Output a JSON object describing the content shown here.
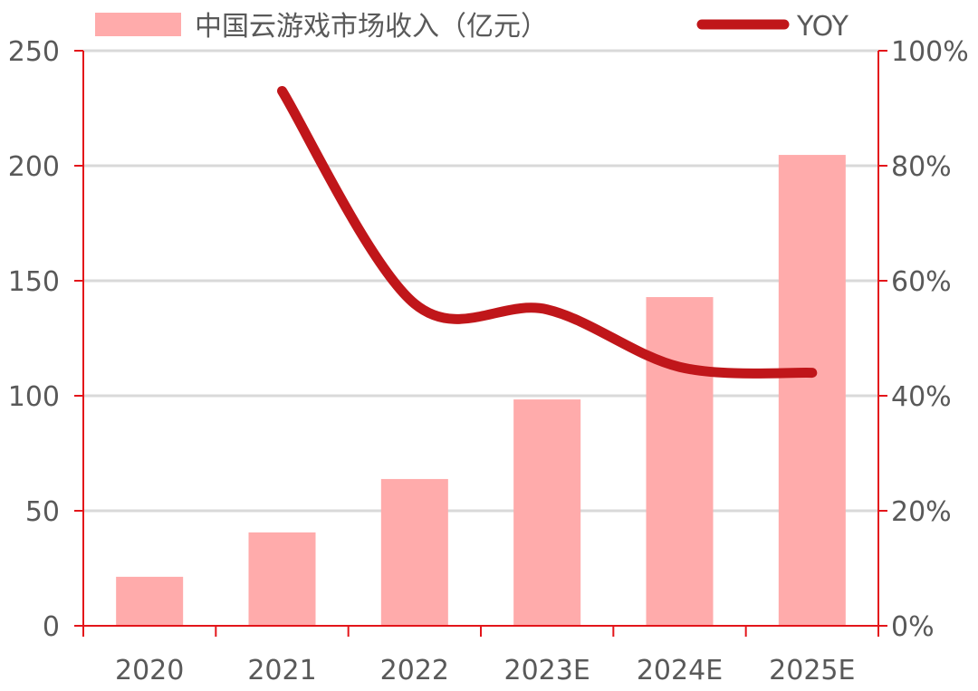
{
  "chart_data": {
    "type": "bar+line",
    "categories": [
      "2020",
      "2021",
      "2022",
      "2023E",
      "2024E",
      "2025E"
    ],
    "series": [
      {
        "name": "中国云游戏市场收入（亿元）",
        "type": "bar",
        "axis": "left",
        "color": "#FFABAB",
        "values": [
          21.3,
          40.6,
          63.8,
          98.4,
          142.9,
          204.7
        ]
      },
      {
        "name": "YOY",
        "type": "line",
        "axis": "right",
        "color": "#C0161A",
        "smooth": true,
        "values": [
          null,
          93,
          56,
          55,
          45,
          44
        ]
      }
    ],
    "left_axis": {
      "range": [
        0,
        250
      ],
      "ticks": [
        "0",
        "50",
        "100",
        "150",
        "200",
        "250"
      ],
      "tick_values": [
        0,
        50,
        100,
        150,
        200,
        250
      ]
    },
    "right_axis": {
      "range": [
        0,
        100
      ],
      "ticks": [
        "0%",
        "20%",
        "40%",
        "60%",
        "80%",
        "100%"
      ],
      "tick_values": [
        0,
        20,
        40,
        60,
        80,
        100
      ]
    },
    "axis_color": "#E3151A",
    "grid": true,
    "legend_position": "top"
  }
}
